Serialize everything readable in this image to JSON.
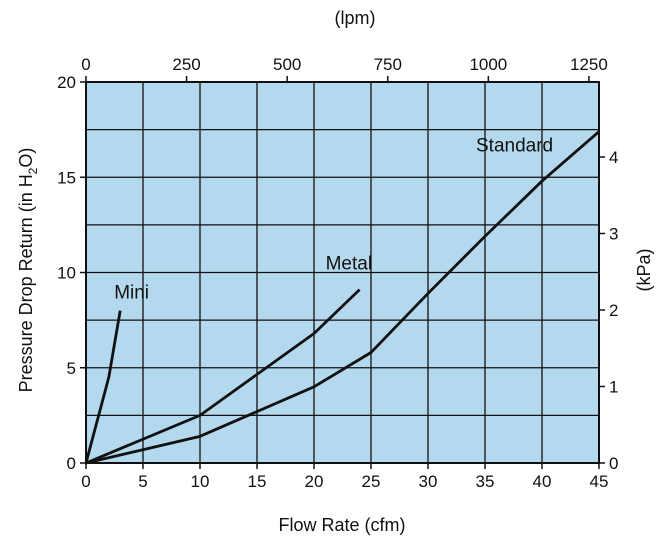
{
  "colors": {
    "plot_background": "#b4d9ee",
    "lines": "#111111"
  },
  "chart_data": {
    "type": "line",
    "title": "",
    "xlabel": "Flow Rate  (cfm)",
    "ylabel_prefix": "Pressure Drop Return  (in H",
    "ylabel_sub": "2",
    "ylabel_suffix": "O)",
    "x2label": "(lpm)",
    "y2label": "(kPa)",
    "xlim": [
      0,
      45
    ],
    "ylim": [
      0,
      20
    ],
    "x2lim": [
      0,
      1275
    ],
    "y2lim": [
      0,
      4.98
    ],
    "xticks": [
      0,
      5,
      10,
      15,
      20,
      25,
      30,
      35,
      40,
      45
    ],
    "yticks": [
      0,
      5,
      10,
      15,
      20
    ],
    "x2ticks": [
      0,
      250,
      500,
      750,
      1000,
      1250
    ],
    "y2ticks": [
      0,
      1,
      2,
      3,
      4
    ],
    "x_gridlines": [
      0,
      5,
      10,
      15,
      20,
      25,
      30,
      35,
      40,
      45
    ],
    "y_gridlines": [
      0,
      2.5,
      5,
      7.5,
      10,
      12.5,
      15,
      17.5,
      20
    ],
    "grid": true,
    "series": [
      {
        "name": "Mini",
        "x": [
          0,
          2,
          3
        ],
        "y": [
          0,
          4.5,
          8
        ]
      },
      {
        "name": "Metal",
        "x": [
          0,
          10,
          20,
          24
        ],
        "y": [
          0,
          2.5,
          6.8,
          9.1
        ]
      },
      {
        "name": "Standard",
        "x": [
          0,
          10,
          20,
          25,
          30,
          35,
          40,
          45
        ],
        "y": [
          0,
          1.4,
          4,
          5.8,
          8.9,
          11.9,
          14.8,
          17.4
        ]
      }
    ]
  }
}
